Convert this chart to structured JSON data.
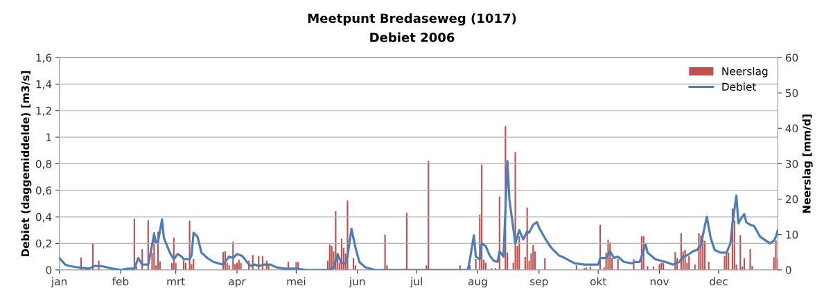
{
  "chart_data": {
    "type": "line",
    "title": "Meetpunt Bredaseweg (1017)",
    "subtitle": "Debiet 2006",
    "ylabel": "Debiet (daggemiddelde) [m3/s]",
    "y2label": "Neerslag [mm/d]",
    "xlim": [
      "2006-01-01",
      "2006-12-31"
    ],
    "xticks": [
      {
        "value": "2006-01-01",
        "label": "jan"
      },
      {
        "value": "2006-02-01",
        "label": "feb"
      },
      {
        "value": "2006-03-01",
        "label": "mrt"
      },
      {
        "value": "2006-04-01",
        "label": "apr"
      },
      {
        "value": "2006-05-01",
        "label": "mei"
      },
      {
        "value": "2006-06-01",
        "label": "jun"
      },
      {
        "value": "2006-07-01",
        "label": "jul"
      },
      {
        "value": "2006-08-01",
        "label": "aug"
      },
      {
        "value": "2006-09-01",
        "label": "sep"
      },
      {
        "value": "2006-10-01",
        "label": "okt"
      },
      {
        "value": "2006-11-01",
        "label": "nov"
      },
      {
        "value": "2006-12-01",
        "label": "dec"
      }
    ],
    "ylim": [
      0,
      1.6
    ],
    "yticks": [
      0,
      {
        "value": 0.2,
        "label": "0,2"
      },
      {
        "value": 0.4,
        "label": "0,4"
      },
      {
        "value": 0.6,
        "label": "0,6"
      },
      {
        "value": 0.8,
        "label": "0,8"
      },
      1,
      {
        "value": 1.2,
        "label": "1,2"
      },
      {
        "value": 1.4,
        "label": "1,4"
      },
      {
        "value": 1.6,
        "label": "1,6"
      }
    ],
    "y2lim": [
      0,
      60
    ],
    "y2ticks": [
      0,
      10,
      20,
      30,
      40,
      50,
      60
    ],
    "grid": "y",
    "legend": "top right",
    "series": [
      {
        "name": "Neerslag",
        "type": "bar",
        "axis": "y2",
        "color": "#c0504d",
        "x": [
          "2006-01-12",
          "2006-01-18",
          "2006-01-21",
          "2006-02-05",
          "2006-02-08",
          "2006-02-09",
          "2006-02-12",
          "2006-02-15",
          "2006-02-17",
          "2006-02-18",
          "2006-02-19",
          "2006-02-20",
          "2006-02-21",
          "2006-02-27",
          "2006-02-28",
          "2006-03-01",
          "2006-03-05",
          "2006-03-06",
          "2006-03-08",
          "2006-03-09",
          "2006-03-10",
          "2006-03-25",
          "2006-03-26",
          "2006-03-27",
          "2006-03-28",
          "2006-03-30",
          "2006-03-31",
          "2006-04-01",
          "2006-04-02",
          "2006-04-03",
          "2006-04-07",
          "2006-04-09",
          "2006-04-12",
          "2006-04-14",
          "2006-04-16",
          "2006-04-17",
          "2006-04-26",
          "2006-04-27",
          "2006-05-01",
          "2006-05-02",
          "2006-05-17",
          "2006-05-18",
          "2006-05-19",
          "2006-05-20",
          "2006-05-21",
          "2006-05-22",
          "2006-05-23",
          "2006-05-24",
          "2006-05-25",
          "2006-05-26",
          "2006-05-27",
          "2006-05-30",
          "2006-05-31",
          "2006-06-15",
          "2006-06-16",
          "2006-06-26",
          "2006-07-06",
          "2006-07-07",
          "2006-07-23",
          "2006-07-28",
          "2006-07-31",
          "2006-08-02",
          "2006-08-03",
          "2006-08-04",
          "2006-08-05",
          "2006-08-08",
          "2006-08-10",
          "2006-08-12",
          "2006-08-15",
          "2006-08-16",
          "2006-08-19",
          "2006-08-20",
          "2006-08-21",
          "2006-08-22",
          "2006-08-25",
          "2006-08-26",
          "2006-08-27",
          "2006-08-28",
          "2006-08-29",
          "2006-08-30",
          "2006-09-04",
          "2006-09-20",
          "2006-09-24",
          "2006-09-25",
          "2006-09-27",
          "2006-10-02",
          "2006-10-04",
          "2006-10-05",
          "2006-10-06",
          "2006-10-07",
          "2006-10-08",
          "2006-10-11",
          "2006-10-19",
          "2006-10-23",
          "2006-10-24",
          "2006-10-26",
          "2006-10-29",
          "2006-11-01",
          "2006-11-02",
          "2006-11-03",
          "2006-11-09",
          "2006-11-10",
          "2006-11-12",
          "2006-11-13",
          "2006-11-14",
          "2006-11-15",
          "2006-11-16",
          "2006-11-19",
          "2006-11-21",
          "2006-11-22",
          "2006-11-23",
          "2006-11-24",
          "2006-11-26",
          "2006-12-04",
          "2006-12-05",
          "2006-12-06",
          "2006-12-08",
          "2006-12-09",
          "2006-12-10",
          "2006-12-12",
          "2006-12-13",
          "2006-12-14",
          "2006-12-17",
          "2006-12-18",
          "2006-12-29",
          "2006-12-30",
          "2006-12-31"
        ],
        "values": [
          3.5,
          7.4,
          2.6,
          null,
          14.5,
          1.1,
          5.9,
          14.0,
          4.8,
          10.7,
          1.3,
          10.8,
          2.4,
          2.0,
          9.1,
          2.0,
          2.6,
          2.0,
          13.9,
          1.6,
          3.1,
          5.0,
          5.3,
          2.0,
          1.3,
          8.0,
          1.6,
          2.0,
          2.9,
          2.0,
          2.6,
          4.2,
          3.9,
          3.9,
          2.6,
          1.6,
          null,
          2.3,
          2.2,
          2.2,
          2.6,
          7.2,
          6.8,
          5.2,
          16.6,
          3.6,
          2.0,
          8.8,
          6.2,
          4.6,
          19.6,
          3.3,
          1.3,
          10.0,
          1.3,
          16.1,
          1.3,
          30.8,
          1.3,
          1.3,
          3.1,
          15.6,
          29.8,
          2.9,
          2.0,
          0.5,
          0.5,
          20.7,
          40.6,
          4.9,
          2.0,
          33.3,
          6.8,
          9.5,
          3.7,
          17.6,
          2.6,
          4.6,
          7.0,
          5.2,
          3.3,
          1.3,
          0.5,
          0.7,
          1.0,
          12.7,
          0.7,
          4.9,
          8.5,
          7.8,
          3.3,
          3.1,
          3.1,
          9.5,
          9.5,
          1.1,
          1.0,
          1.6,
          2.0,
          2.0,
          5.0,
          3.3,
          10.4,
          5.2,
          5.7,
          2.0,
          3.9,
          1.5,
          10.4,
          9.8,
          8.5,
          8.2,
          2.3,
          3.9,
          4.9,
          4.9,
          17.3,
          14.0,
          1.5,
          9.8,
          1.0,
          3.3,
          5.9,
          1.1,
          3.6,
          8.3,
          3.3
        ]
      },
      {
        "name": "Debiet",
        "axis": "y",
        "color": "#4a7ebb",
        "x": [
          "2006-01-01",
          "2006-01-04",
          "2006-01-06",
          "2006-01-10",
          "2006-01-16",
          "2006-01-19",
          "2006-01-22",
          "2006-01-25",
          "2006-01-28",
          "2006-02-01",
          "2006-02-05",
          "2006-02-08",
          "2006-02-10",
          "2006-02-12",
          "2006-02-15",
          "2006-02-16",
          "2006-02-17",
          "2006-02-18",
          "2006-02-19",
          "2006-02-20",
          "2006-02-22",
          "2006-02-23",
          "2006-02-26",
          "2006-02-28",
          "2006-03-02",
          "2006-03-04",
          "2006-03-05",
          "2006-03-08",
          "2006-03-09",
          "2006-03-10",
          "2006-03-12",
          "2006-03-14",
          "2006-03-17",
          "2006-03-20",
          "2006-03-25",
          "2006-03-28",
          "2006-03-30",
          "2006-04-01",
          "2006-04-03",
          "2006-04-04",
          "2006-04-06",
          "2006-04-08",
          "2006-04-10",
          "2006-04-12",
          "2006-04-15",
          "2006-04-18",
          "2006-04-21",
          "2006-04-25",
          "2006-05-01",
          "2006-05-06",
          "2006-05-18",
          "2006-05-20",
          "2006-05-22",
          "2006-05-24",
          "2006-05-26",
          "2006-05-27",
          "2006-05-29",
          "2006-05-31",
          "2006-06-02",
          "2006-06-05",
          "2006-06-10",
          "2006-07-27",
          "2006-07-28",
          "2006-07-30",
          "2006-07-31",
          "2006-08-02",
          "2006-08-03",
          "2006-08-05",
          "2006-08-07",
          "2006-08-09",
          "2006-08-11",
          "2006-08-12",
          "2006-08-14",
          "2006-08-16",
          "2006-08-17",
          "2006-08-20",
          "2006-08-22",
          "2006-08-24",
          "2006-08-26",
          "2006-08-27",
          "2006-08-29",
          "2006-08-31",
          "2006-09-01",
          "2006-09-04",
          "2006-09-07",
          "2006-09-11",
          "2006-09-14",
          "2006-09-19",
          "2006-09-24",
          "2006-10-01",
          "2006-10-02",
          "2006-10-05",
          "2006-10-07",
          "2006-10-09",
          "2006-10-11",
          "2006-10-14",
          "2006-10-18",
          "2006-10-20",
          "2006-10-22",
          "2006-10-25",
          "2006-10-26",
          "2006-10-30",
          "2006-11-04",
          "2006-11-08",
          "2006-11-11",
          "2006-11-13",
          "2006-11-15",
          "2006-11-18",
          "2006-11-20",
          "2006-11-22",
          "2006-11-25",
          "2006-11-27",
          "2006-11-29",
          "2006-12-02",
          "2006-12-05",
          "2006-12-07",
          "2006-12-08",
          "2006-12-10",
          "2006-12-11",
          "2006-12-12",
          "2006-12-14",
          "2006-12-15",
          "2006-12-17",
          "2006-12-19",
          "2006-12-22",
          "2006-12-25",
          "2006-12-27",
          "2006-12-29",
          "2006-12-30",
          "2006-12-31"
        ],
        "values": [
          0.09,
          0.04,
          0.03,
          0.02,
          0.01,
          0.03,
          0.03,
          0.02,
          0.01,
          0,
          0.01,
          0.01,
          0.09,
          0.04,
          0.04,
          0.11,
          0.19,
          0.27,
          0.21,
          0.21,
          0.38,
          0.24,
          0.13,
          0.08,
          0.12,
          0.1,
          0.08,
          0.08,
          0.11,
          0.28,
          0.25,
          0.13,
          0.09,
          0.06,
          0.04,
          0.1,
          0.09,
          0.12,
          0.11,
          0.1,
          0.06,
          0.03,
          0.04,
          0.03,
          0.04,
          0.04,
          0.02,
          0.01,
          0.01,
          0,
          0,
          0.02,
          0.12,
          0.05,
          0.05,
          0.1,
          0.31,
          0.17,
          0.06,
          0.02,
          0,
          0,
          0.08,
          0.26,
          0.1,
          0.08,
          0.2,
          0.18,
          0.11,
          0.07,
          0.06,
          0.14,
          0.1,
          0.82,
          0.53,
          0.2,
          0.3,
          0.23,
          0.29,
          0.28,
          0.34,
          0.36,
          0.32,
          0.24,
          0.17,
          0.11,
          0.09,
          0.05,
          0.04,
          0.04,
          0.09,
          0.09,
          0.14,
          0.09,
          0.1,
          0.06,
          0.05,
          0.06,
          0.06,
          0.19,
          0.13,
          0.08,
          0.06,
          0.04,
          0.06,
          0.1,
          0.11,
          0.14,
          0.15,
          0.19,
          0.4,
          0.24,
          0.15,
          0.13,
          0.13,
          0.2,
          0.35,
          0.56,
          0.35,
          0.38,
          0.42,
          0.36,
          0.34,
          0.33,
          0.25,
          0.22,
          0.2,
          0.22,
          0.25,
          0.3
        ]
      }
    ]
  }
}
